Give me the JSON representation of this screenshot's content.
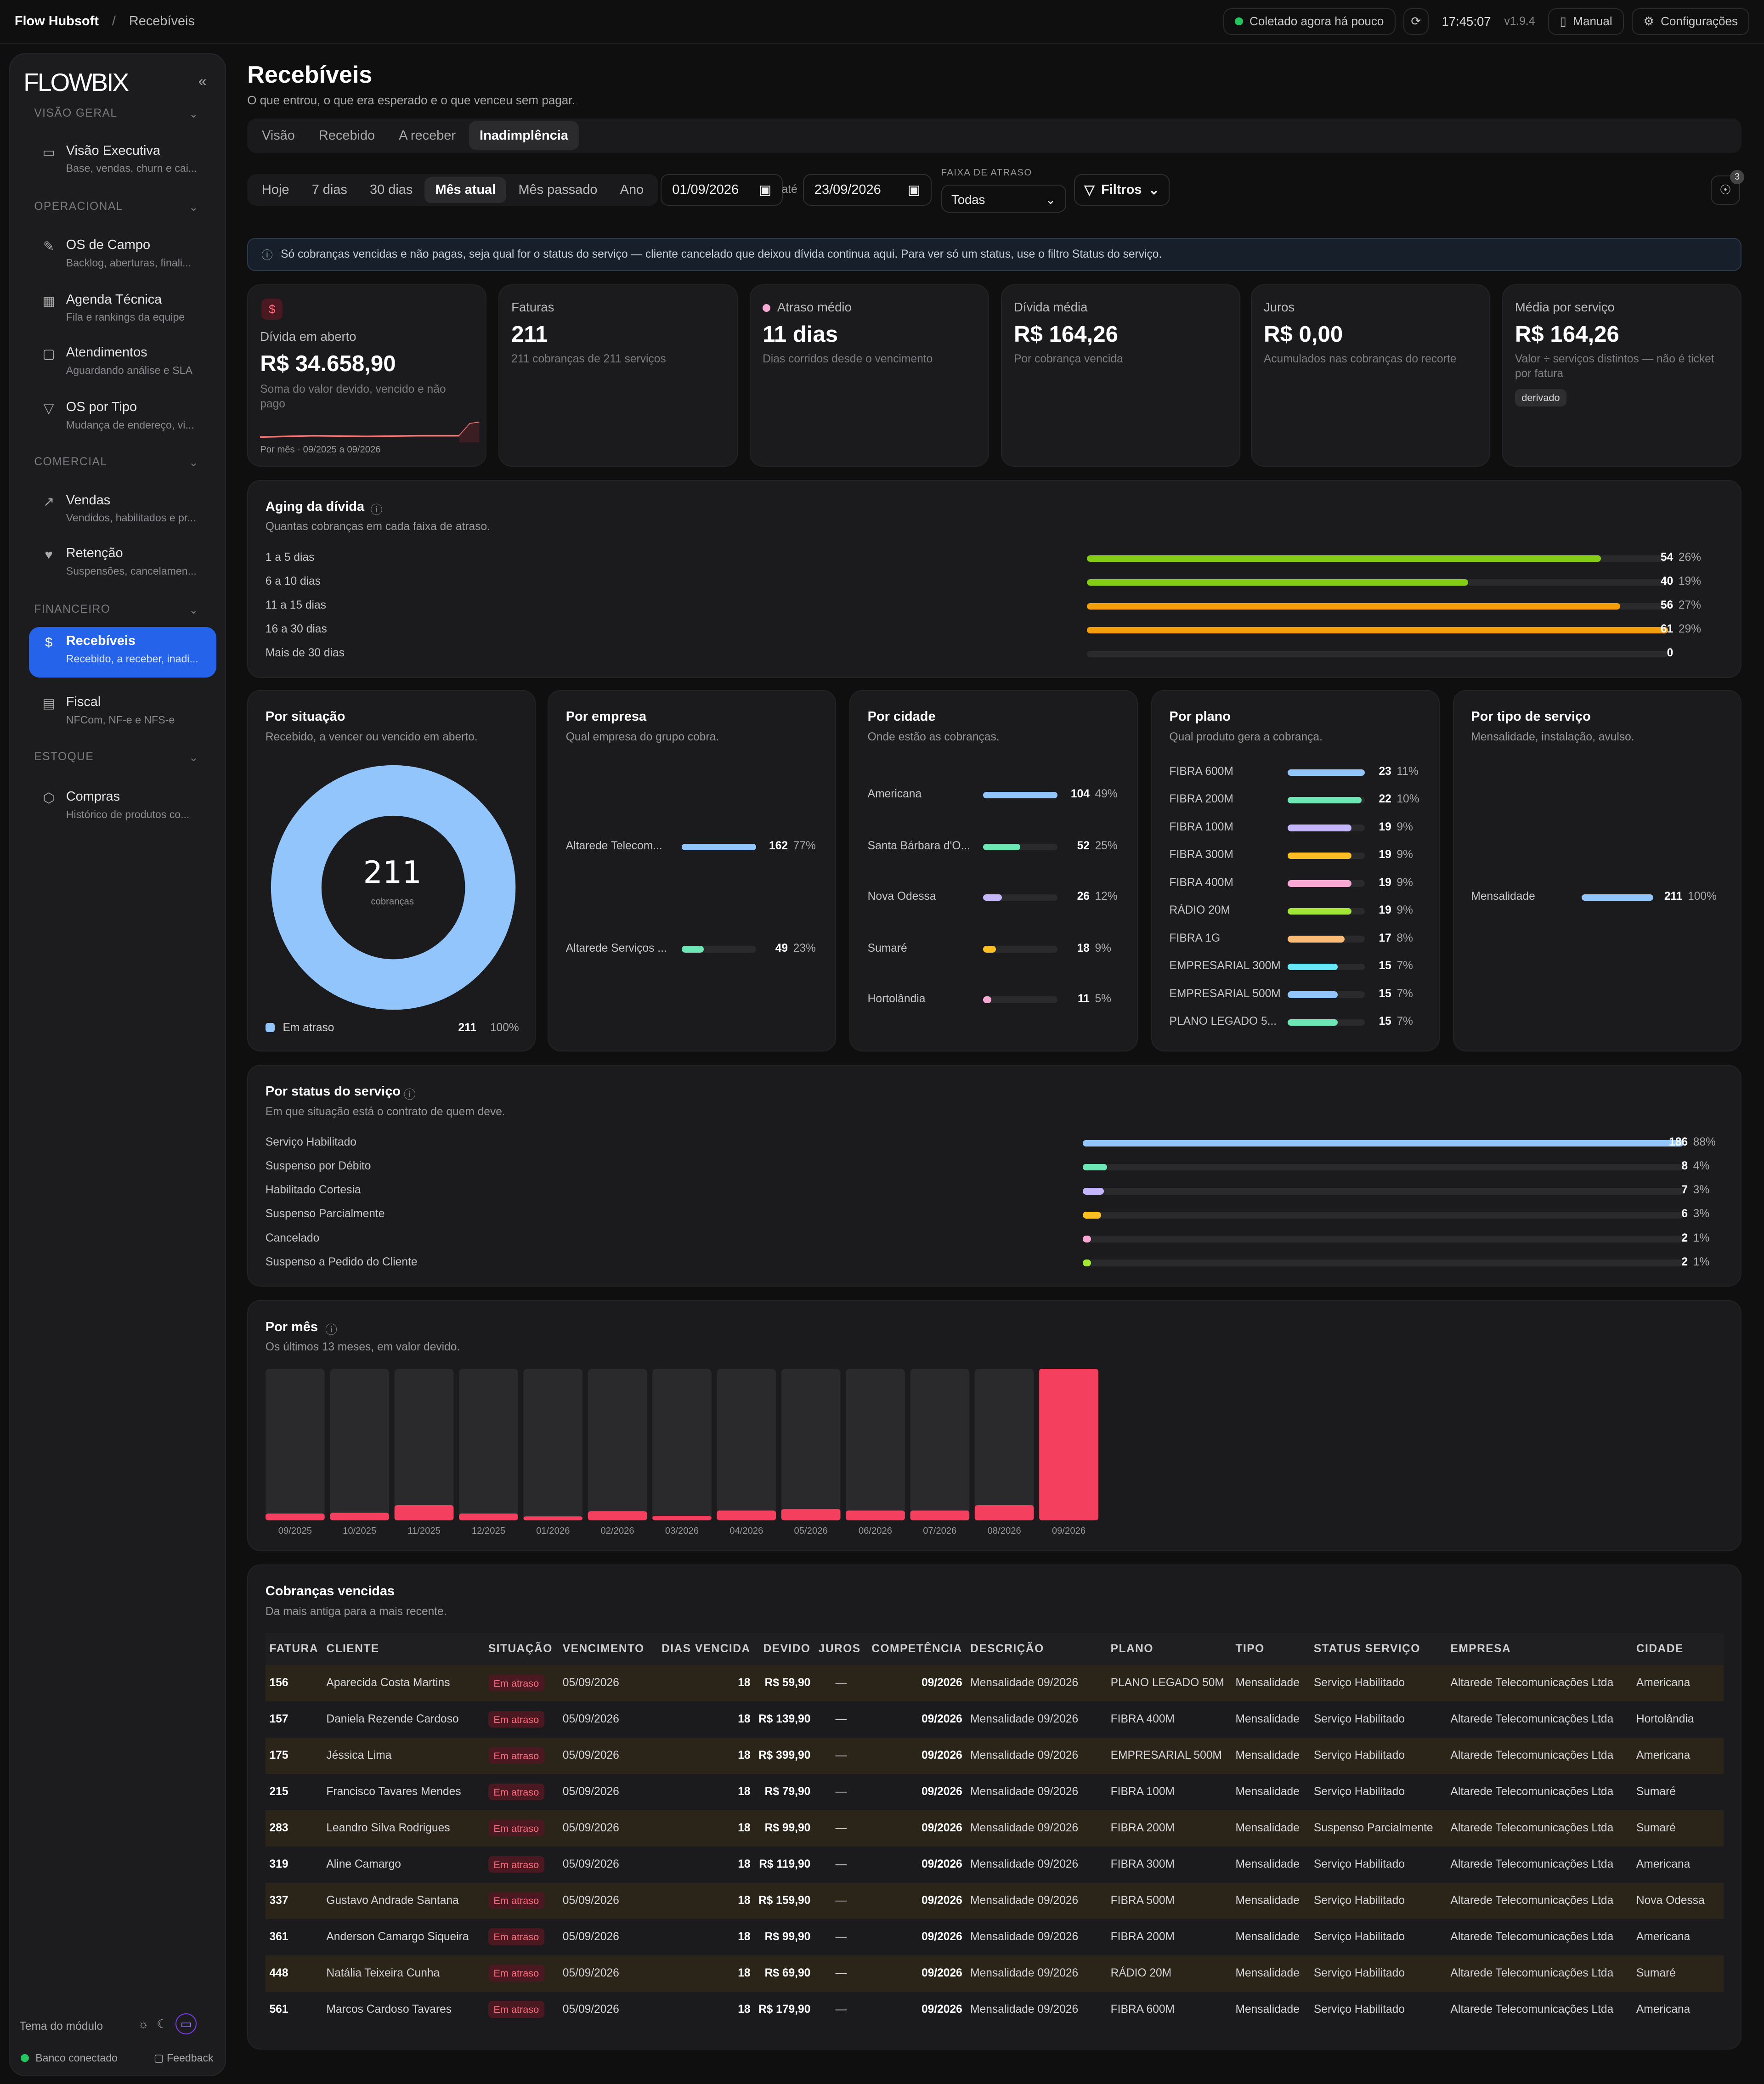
{
  "topbar": {
    "app": "Flow Hubsoft",
    "separator": "/",
    "page": "Recebíveis",
    "status": "Coletado agora há pouco",
    "time": "17:45:07",
    "version": "v1.9.4",
    "manual": "Manual",
    "settings": "Configurações"
  },
  "sidebar": {
    "logo": "FLOWBIX",
    "collapse": "«",
    "sections": [
      {
        "label": "VISÃO GERAL"
      },
      {
        "label": "OPERACIONAL"
      },
      {
        "label": "COMERCIAL"
      },
      {
        "label": "FINANCEIRO"
      },
      {
        "label": "ESTOQUE"
      }
    ],
    "items": [
      {
        "title": "Visão Executiva",
        "sub": "Base, vendas, churn e cai..."
      },
      {
        "title": "OS de Campo",
        "sub": "Backlog, aberturas, finali..."
      },
      {
        "title": "Agenda Técnica",
        "sub": "Fila e rankings da equipe"
      },
      {
        "title": "Atendimentos",
        "sub": "Aguardando análise e SLA"
      },
      {
        "title": "OS por Tipo",
        "sub": "Mudança de endereço, vi..."
      },
      {
        "title": "Vendas",
        "sub": "Vendidos, habilitados e pr..."
      },
      {
        "title": "Retenção",
        "sub": "Suspensões, cancelamen..."
      },
      {
        "title": "Recebíveis",
        "sub": "Recebido, a receber, inadi..."
      },
      {
        "title": "Fiscal",
        "sub": "NFCom, NF-e e NFS-e"
      },
      {
        "title": "Compras",
        "sub": "Histórico de produtos co..."
      }
    ],
    "theme_label": "Tema do módulo",
    "db_status": "Banco conectado",
    "feedback": "Feedback"
  },
  "page": {
    "title": "Recebíveis",
    "subtitle": "O que entrou, o que era esperado e o que venceu sem pagar.",
    "tabs": [
      "Visão",
      "Recebido",
      "A receber",
      "Inadimplência"
    ],
    "active_tab": 3
  },
  "filters": {
    "ranges": [
      "Hoje",
      "7 dias",
      "30 dias",
      "Mês atual",
      "Mês passado",
      "Ano"
    ],
    "active_range": 3,
    "date_from": "01/09/2026",
    "until": "até",
    "date_to": "23/09/2026",
    "delay_label": "FAIXA DE ATRASO",
    "delay_value": "Todas",
    "filters_button": "Filtros",
    "hint_count": "3"
  },
  "info_banner": "Só cobranças vencidas e não pagas, seja qual for o status do serviço — cliente cancelado que deixou dívida continua aqui. Para ver só um status, use o filtro Status do serviço.",
  "kpis": [
    {
      "label": "Dívida em aberto",
      "value": "R$ 34.658,90",
      "desc": "Soma do valor devido, vencido e não pago",
      "foot": "Por mês · 09/2025 a 09/2026"
    },
    {
      "label": "Faturas",
      "value": "211",
      "desc": "211 cobranças de 211 serviços"
    },
    {
      "label": "Atraso médio",
      "value": "11 dias",
      "desc": "Dias corridos desde o vencimento"
    },
    {
      "label": "Dívida média",
      "value": "R$ 164,26",
      "desc": "Por cobrança vencida"
    },
    {
      "label": "Juros",
      "value": "R$ 0,00",
      "desc": "Acumulados nas cobranças do recorte"
    },
    {
      "label": "Média por serviço",
      "value": "R$ 164,26",
      "desc": "Valor ÷ serviços distintos — não é ticket por fatura",
      "tag": "derivado"
    }
  ],
  "aging": {
    "title": "Aging da dívida",
    "subtitle": "Quantas cobranças em cada faixa de atraso.",
    "rows": [
      {
        "label": "1 a 5 dias",
        "count": "54",
        "pct": "26%",
        "share": 0.885,
        "color": "#84cc16"
      },
      {
        "label": "6 a 10 dias",
        "count": "40",
        "pct": "19%",
        "share": 0.656,
        "color": "#84cc16"
      },
      {
        "label": "11 a 15 dias",
        "count": "56",
        "pct": "27%",
        "share": 0.918,
        "color": "#f59e0b"
      },
      {
        "label": "16 a 30 dias",
        "count": "61",
        "pct": "29%",
        "share": 1.0,
        "color": "#f59e0b"
      },
      {
        "label": "Mais de 30 dias",
        "count": "0",
        "pct": "",
        "share": 0,
        "color": "#f59e0b"
      }
    ]
  },
  "situacao": {
    "title": "Por situação",
    "subtitle": "Recebido, a vencer ou vencido em aberto.",
    "total": "211",
    "total_label": "cobranças",
    "legend": [
      {
        "label": "Em atraso",
        "count": "211",
        "pct": "100%",
        "color": "#93c5fd"
      }
    ]
  },
  "empresa": {
    "title": "Por empresa",
    "subtitle": "Qual empresa do grupo cobra.",
    "rows": [
      {
        "label": "Altarede Telecom...",
        "count": "162",
        "pct": "77%",
        "share": 1.0,
        "color": "#93c5fd"
      },
      {
        "label": "Altarede Serviços ...",
        "count": "49",
        "pct": "23%",
        "share": 0.3,
        "color": "#6ee7b7"
      }
    ]
  },
  "cidade": {
    "title": "Por cidade",
    "subtitle": "Onde estão as cobranças.",
    "rows": [
      {
        "label": "Americana",
        "count": "104",
        "pct": "49%",
        "share": 1.0,
        "color": "#93c5fd"
      },
      {
        "label": "Santa Bárbara d'O...",
        "count": "52",
        "pct": "25%",
        "share": 0.5,
        "color": "#6ee7b7"
      },
      {
        "label": "Nova Odessa",
        "count": "26",
        "pct": "12%",
        "share": 0.25,
        "color": "#c4b5fd"
      },
      {
        "label": "Sumaré",
        "count": "18",
        "pct": "9%",
        "share": 0.17,
        "color": "#fbbf24"
      },
      {
        "label": "Hortolândia",
        "count": "11",
        "pct": "5%",
        "share": 0.1,
        "color": "#f9a8d4"
      }
    ]
  },
  "plano": {
    "title": "Por plano",
    "subtitle": "Qual produto gera a cobrança.",
    "rows": [
      {
        "label": "FIBRA 600M",
        "count": "23",
        "pct": "11%",
        "share": 1.0,
        "color": "#93c5fd"
      },
      {
        "label": "FIBRA 200M",
        "count": "22",
        "pct": "10%",
        "share": 0.96,
        "color": "#6ee7b7"
      },
      {
        "label": "FIBRA 100M",
        "count": "19",
        "pct": "9%",
        "share": 0.83,
        "color": "#c4b5fd"
      },
      {
        "label": "FIBRA 300M",
        "count": "19",
        "pct": "9%",
        "share": 0.83,
        "color": "#fbbf24"
      },
      {
        "label": "FIBRA 400M",
        "count": "19",
        "pct": "9%",
        "share": 0.83,
        "color": "#f9a8d4"
      },
      {
        "label": "RÁDIO 20M",
        "count": "19",
        "pct": "9%",
        "share": 0.83,
        "color": "#a3e635"
      },
      {
        "label": "FIBRA 1G",
        "count": "17",
        "pct": "8%",
        "share": 0.74,
        "color": "#fdba74"
      },
      {
        "label": "EMPRESARIAL 300M",
        "count": "15",
        "pct": "7%",
        "share": 0.65,
        "color": "#67e8f9"
      },
      {
        "label": "EMPRESARIAL 500M",
        "count": "15",
        "pct": "7%",
        "share": 0.65,
        "color": "#93c5fd"
      },
      {
        "label": "PLANO LEGADO 5...",
        "count": "15",
        "pct": "7%",
        "share": 0.65,
        "color": "#6ee7b7"
      }
    ]
  },
  "tipo": {
    "title": "Por tipo de serviço",
    "subtitle": "Mensalidade, instalação, avulso.",
    "rows": [
      {
        "label": "Mensalidade",
        "count": "211",
        "pct": "100%",
        "share": 1.0,
        "color": "#93c5fd"
      }
    ]
  },
  "status_servico": {
    "title": "Por status do serviço",
    "subtitle": "Em que situação está o contrato de quem deve.",
    "rows": [
      {
        "label": "Serviço Habilitado",
        "count": "186",
        "pct": "88%",
        "share": 1.0,
        "color": "#93c5fd"
      },
      {
        "label": "Suspenso por Débito",
        "count": "8",
        "pct": "4%",
        "share": 0.04,
        "color": "#6ee7b7"
      },
      {
        "label": "Habilitado Cortesia",
        "count": "7",
        "pct": "3%",
        "share": 0.035,
        "color": "#c4b5fd"
      },
      {
        "label": "Suspenso Parcialmente",
        "count": "6",
        "pct": "3%",
        "share": 0.03,
        "color": "#fbbf24"
      },
      {
        "label": "Cancelado",
        "count": "2",
        "pct": "1%",
        "share": 0.01,
        "color": "#f9a8d4"
      },
      {
        "label": "Suspenso a Pedido do Cliente",
        "count": "2",
        "pct": "1%",
        "share": 0.01,
        "color": "#a3e635"
      }
    ]
  },
  "chart_data": {
    "type": "bar",
    "title": "Por mês",
    "subtitle": "Os últimos 13 meses, em valor devido.",
    "categories": [
      "09/2025",
      "10/2025",
      "11/2025",
      "12/2025",
      "01/2026",
      "02/2026",
      "03/2026",
      "04/2026",
      "05/2026",
      "06/2026",
      "07/2026",
      "08/2026",
      "09/2026"
    ],
    "values": [
      0.045,
      0.05,
      0.1,
      0.045,
      0.025,
      0.06,
      0.03,
      0.065,
      0.075,
      0.065,
      0.065,
      0.1,
      1.0
    ],
    "color": "#f43f5e",
    "grid": false
  },
  "table": {
    "title": "Cobranças vencidas",
    "subtitle": "Da mais antiga para a mais recente.",
    "columns": [
      "FATURA",
      "CLIENTE",
      "SITUAÇÃO",
      "VENCIMENTO",
      "DIAS VENCIDA",
      "DEVIDO",
      "JUROS",
      "COMPETÊNCIA",
      "DESCRIÇÃO",
      "PLANO",
      "TIPO",
      "STATUS SERVIÇO",
      "EMPRESA",
      "CIDADE"
    ],
    "rows": [
      [
        "156",
        "Aparecida Costa Martins",
        "Em atraso",
        "05/09/2026",
        "18",
        "R$ 59,90",
        "—",
        "09/2026",
        "Mensalidade 09/2026",
        "PLANO LEGADO 50M",
        "Mensalidade",
        "Serviço Habilitado",
        "Altarede Telecomunicações Ltda",
        "Americana"
      ],
      [
        "157",
        "Daniela Rezende Cardoso",
        "Em atraso",
        "05/09/2026",
        "18",
        "R$ 139,90",
        "—",
        "09/2026",
        "Mensalidade 09/2026",
        "FIBRA 400M",
        "Mensalidade",
        "Serviço Habilitado",
        "Altarede Telecomunicações Ltda",
        "Hortolândia"
      ],
      [
        "175",
        "Jéssica Lima",
        "Em atraso",
        "05/09/2026",
        "18",
        "R$ 399,90",
        "—",
        "09/2026",
        "Mensalidade 09/2026",
        "EMPRESARIAL 500M",
        "Mensalidade",
        "Serviço Habilitado",
        "Altarede Telecomunicações Ltda",
        "Americana"
      ],
      [
        "215",
        "Francisco Tavares Mendes",
        "Em atraso",
        "05/09/2026",
        "18",
        "R$ 79,90",
        "—",
        "09/2026",
        "Mensalidade 09/2026",
        "FIBRA 100M",
        "Mensalidade",
        "Serviço Habilitado",
        "Altarede Telecomunicações Ltda",
        "Sumaré"
      ],
      [
        "283",
        "Leandro Silva Rodrigues",
        "Em atraso",
        "05/09/2026",
        "18",
        "R$ 99,90",
        "—",
        "09/2026",
        "Mensalidade 09/2026",
        "FIBRA 200M",
        "Mensalidade",
        "Suspenso Parcialmente",
        "Altarede Telecomunicações Ltda",
        "Sumaré"
      ],
      [
        "319",
        "Aline Camargo",
        "Em atraso",
        "05/09/2026",
        "18",
        "R$ 119,90",
        "—",
        "09/2026",
        "Mensalidade 09/2026",
        "FIBRA 300M",
        "Mensalidade",
        "Serviço Habilitado",
        "Altarede Telecomunicações Ltda",
        "Americana"
      ],
      [
        "337",
        "Gustavo Andrade Santana",
        "Em atraso",
        "05/09/2026",
        "18",
        "R$ 159,90",
        "—",
        "09/2026",
        "Mensalidade 09/2026",
        "FIBRA 500M",
        "Mensalidade",
        "Serviço Habilitado",
        "Altarede Telecomunicações Ltda",
        "Nova Odessa"
      ],
      [
        "361",
        "Anderson Camargo Siqueira",
        "Em atraso",
        "05/09/2026",
        "18",
        "R$ 99,90",
        "—",
        "09/2026",
        "Mensalidade 09/2026",
        "FIBRA 200M",
        "Mensalidade",
        "Serviço Habilitado",
        "Altarede Telecomunicações Ltda",
        "Americana"
      ],
      [
        "448",
        "Natália Teixeira Cunha",
        "Em atraso",
        "05/09/2026",
        "18",
        "R$ 69,90",
        "—",
        "09/2026",
        "Mensalidade 09/2026",
        "RÁDIO 20M",
        "Mensalidade",
        "Serviço Habilitado",
        "Altarede Telecomunicações Ltda",
        "Sumaré"
      ],
      [
        "561",
        "Marcos Cardoso Tavares",
        "Em atraso",
        "05/09/2026",
        "18",
        "R$ 179,90",
        "—",
        "09/2026",
        "Mensalidade 09/2026",
        "FIBRA 600M",
        "Mensalidade",
        "Serviço Habilitado",
        "Altarede Telecomunicações Ltda",
        "Americana"
      ]
    ]
  }
}
